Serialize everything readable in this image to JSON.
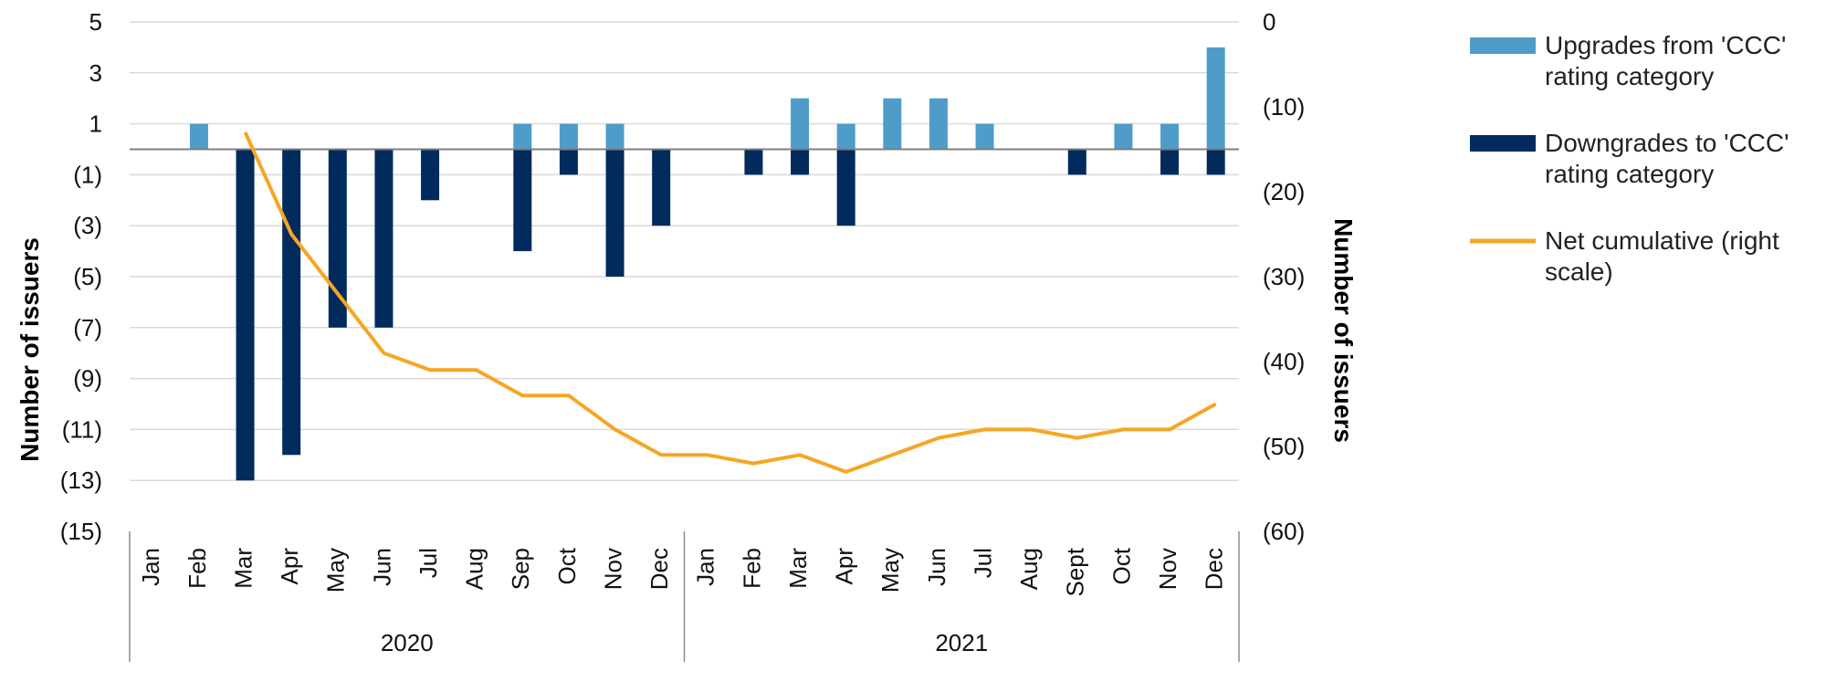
{
  "chart_data": {
    "type": "bar",
    "title": "",
    "y_left_label": "Number of issuers",
    "y_right_label": "Number of issuers",
    "y_left_ticks": [
      "5",
      "3",
      "1",
      "(1)",
      "(3)",
      "(5)",
      "(7)",
      "(9)",
      "(11)",
      "(13)",
      "(15)"
    ],
    "y_left_range": [
      -15,
      5
    ],
    "y_right_ticks": [
      "0",
      "(10)",
      "(20)",
      "(30)",
      "(40)",
      "(50)",
      "(60)"
    ],
    "y_right_range": [
      -60,
      0
    ],
    "grid": true,
    "legend_position": "right",
    "months": [
      "Jan",
      "Feb",
      "Mar",
      "Apr",
      "May",
      "Jun",
      "Jul",
      "Aug",
      "Sep",
      "Oct",
      "Nov",
      "Dec",
      "Jan",
      "Feb",
      "Mar",
      "Apr",
      "May",
      "Jun",
      "Jul",
      "Aug",
      "Sept",
      "Oct",
      "Nov",
      "Dec"
    ],
    "years": [
      {
        "label": "2020",
        "span": 12
      },
      {
        "label": "2021",
        "span": 12
      }
    ],
    "series": [
      {
        "name": "Upgrades from 'CCC' rating category",
        "axis": "left",
        "kind": "bar",
        "color": "#4f9cc8",
        "values": [
          0,
          1,
          0,
          0,
          0,
          0,
          0,
          0,
          1,
          1,
          1,
          0,
          0,
          0,
          2,
          1,
          2,
          2,
          1,
          0,
          0,
          1,
          1,
          4
        ]
      },
      {
        "name": "Downgrades to 'CCC' rating category",
        "axis": "left",
        "kind": "bar",
        "color": "#002b5c",
        "values": [
          0,
          0,
          -13,
          -12,
          -7,
          -7,
          -2,
          0,
          -4,
          -1,
          -5,
          -3,
          0,
          -1,
          -1,
          -3,
          0,
          0,
          0,
          0,
          -1,
          0,
          -1,
          -1
        ]
      },
      {
        "name": "Net cumulative (right scale)",
        "axis": "right",
        "kind": "line",
        "color": "#f5a623",
        "start_index": 2,
        "values": [
          null,
          null,
          -13,
          -25,
          -32,
          -39,
          -41,
          -41,
          -44,
          -44,
          -48,
          -51,
          -51,
          -52,
          -51,
          -53,
          -51,
          -49,
          -48,
          -48,
          -49,
          -48,
          -48,
          -45
        ]
      }
    ]
  }
}
